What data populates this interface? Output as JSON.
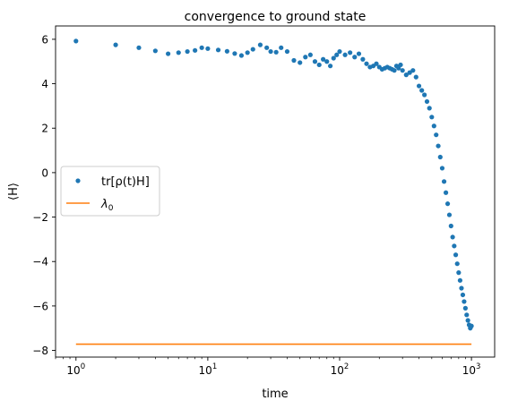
{
  "chart_data": {
    "type": "scatter",
    "title": "convergence to ground state",
    "xlabel": "time",
    "ylabel": "⟨H⟩",
    "xscale": "log",
    "xlim": [
      0.7,
      1500
    ],
    "ylim": [
      -8.3,
      6.6
    ],
    "xticks": [
      1,
      10,
      100,
      1000
    ],
    "xtick_labels": [
      {
        "base": "10",
        "exp": "0"
      },
      {
        "base": "10",
        "exp": "1"
      },
      {
        "base": "10",
        "exp": "2"
      },
      {
        "base": "10",
        "exp": "3"
      }
    ],
    "yticks": [
      6,
      4,
      2,
      0,
      -2,
      -4,
      -6,
      -8
    ],
    "ytick_labels": [
      "6",
      "4",
      "2",
      "0",
      "−2",
      "−4",
      "−6",
      "−8"
    ],
    "grid": false,
    "legend_position": "center-left",
    "series": [
      {
        "name": "tr[ρ(t)H]",
        "kind": "scatter",
        "color": "#1f77b4",
        "points": [
          [
            1,
            5.92
          ],
          [
            2,
            5.75
          ],
          [
            3,
            5.62
          ],
          [
            4,
            5.48
          ],
          [
            5,
            5.35
          ],
          [
            6,
            5.4
          ],
          [
            7,
            5.45
          ],
          [
            8,
            5.5
          ],
          [
            9,
            5.62
          ],
          [
            10,
            5.58
          ],
          [
            12,
            5.52
          ],
          [
            14,
            5.46
          ],
          [
            16,
            5.36
          ],
          [
            18,
            5.27
          ],
          [
            20,
            5.4
          ],
          [
            22,
            5.55
          ],
          [
            25,
            5.75
          ],
          [
            28,
            5.62
          ],
          [
            30,
            5.45
          ],
          [
            33,
            5.42
          ],
          [
            36,
            5.62
          ],
          [
            40,
            5.45
          ],
          [
            45,
            5.05
          ],
          [
            50,
            4.95
          ],
          [
            55,
            5.2
          ],
          [
            60,
            5.3
          ],
          [
            65,
            5.0
          ],
          [
            70,
            4.85
          ],
          [
            75,
            5.1
          ],
          [
            80,
            5.0
          ],
          [
            85,
            4.8
          ],
          [
            90,
            5.15
          ],
          [
            95,
            5.3
          ],
          [
            100,
            5.45
          ],
          [
            110,
            5.3
          ],
          [
            120,
            5.4
          ],
          [
            130,
            5.2
          ],
          [
            140,
            5.35
          ],
          [
            150,
            5.1
          ],
          [
            160,
            4.9
          ],
          [
            170,
            4.75
          ],
          [
            180,
            4.8
          ],
          [
            190,
            4.9
          ],
          [
            200,
            4.75
          ],
          [
            210,
            4.65
          ],
          [
            220,
            4.7
          ],
          [
            230,
            4.75
          ],
          [
            240,
            4.7
          ],
          [
            250,
            4.65
          ],
          [
            260,
            4.6
          ],
          [
            270,
            4.8
          ],
          [
            280,
            4.7
          ],
          [
            290,
            4.85
          ],
          [
            300,
            4.6
          ],
          [
            320,
            4.4
          ],
          [
            340,
            4.5
          ],
          [
            360,
            4.6
          ],
          [
            380,
            4.3
          ],
          [
            400,
            3.9
          ],
          [
            420,
            3.7
          ],
          [
            440,
            3.5
          ],
          [
            460,
            3.2
          ],
          [
            480,
            2.9
          ],
          [
            500,
            2.5
          ],
          [
            520,
            2.1
          ],
          [
            540,
            1.7
          ],
          [
            560,
            1.2
          ],
          [
            580,
            0.7
          ],
          [
            600,
            0.2
          ],
          [
            620,
            -0.4
          ],
          [
            640,
            -0.9
          ],
          [
            660,
            -1.4
          ],
          [
            680,
            -1.9
          ],
          [
            700,
            -2.4
          ],
          [
            720,
            -2.9
          ],
          [
            740,
            -3.3
          ],
          [
            760,
            -3.7
          ],
          [
            780,
            -4.1
          ],
          [
            800,
            -4.5
          ],
          [
            820,
            -4.85
          ],
          [
            840,
            -5.2
          ],
          [
            860,
            -5.5
          ],
          [
            880,
            -5.8
          ],
          [
            900,
            -6.1
          ],
          [
            920,
            -6.4
          ],
          [
            940,
            -6.65
          ],
          [
            960,
            -6.85
          ],
          [
            980,
            -7.0
          ],
          [
            1000,
            -6.9
          ]
        ]
      },
      {
        "name": "λ0",
        "kind": "line",
        "color": "#ff7f0e",
        "y": -7.72,
        "x_range": [
          1,
          1000
        ]
      }
    ]
  }
}
